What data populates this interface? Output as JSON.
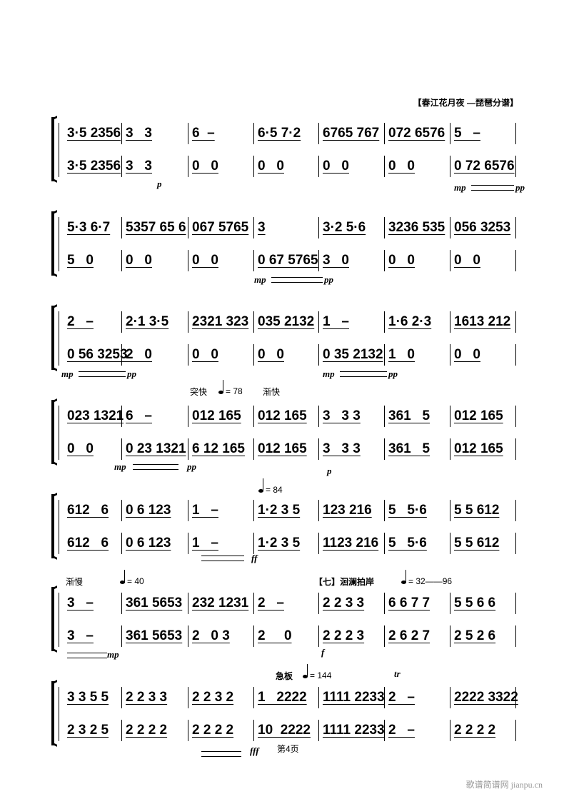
{
  "title": "【春江花月夜 —琵琶分谱】",
  "systems": [
    {
      "top": [
        "3·5 2356",
        "3   3",
        "6  –",
        "6·5 7·2",
        "6765 767",
        "072 6576",
        "5   –"
      ],
      "bottom": [
        "3·5 2356",
        "3   3",
        "0   0",
        "0   0",
        "0   0",
        "0   0",
        "0 72 6576"
      ]
    },
    {
      "top": [
        "5·3 6·7",
        "5357 65 6",
        "067 5765",
        "3",
        "3·2 5·6",
        "3236 535",
        "056 3253"
      ],
      "bottom": [
        "5   0",
        "0   0",
        "0   0",
        "0 67 5765",
        "3   0",
        "0   0",
        "0   0"
      ]
    },
    {
      "top": [
        "2   –",
        "2·1 3·5",
        "2321 323",
        "035 2132",
        "1   –",
        "1·6 2·3",
        "1613 212"
      ],
      "bottom": [
        "0 56 3253",
        "2   0",
        "0   0",
        "0   0",
        "0 35 2132",
        "1   0",
        "0   0"
      ]
    },
    {
      "top": [
        "023 1321",
        "6   –",
        "012 165",
        "012 165",
        "3   3 3",
        "361   5",
        "012 165"
      ],
      "bottom": [
        "0   0",
        "0 23 1321",
        "6 12 165",
        "012 165",
        "3   3 3",
        "361   5",
        "012 165"
      ]
    },
    {
      "top": [
        "612   6",
        "0 6 123",
        "1   –",
        "1·2 3 5",
        "123 216",
        "5   5·6",
        "5 5 612"
      ],
      "bottom": [
        "612   6",
        "0 6 123",
        "1   –",
        "1·2 3 5",
        "1123 216",
        "5   5·6",
        "5 5 612"
      ]
    },
    {
      "top": [
        "3   –",
        "361 5653",
        "232 1231",
        "2   –",
        "2 2 3 3",
        "6 6 7 7",
        "5 5 6 6"
      ],
      "bottom": [
        "3   –",
        "361 5653",
        "2   0 3",
        "2     0",
        "2 2 2 3",
        "2 6 2 7",
        "2 5 2 6"
      ]
    },
    {
      "top": [
        "3 3 5 5",
        "2 2 3 3",
        "2 2 3 2",
        "1   2222",
        "1111 2233",
        "2   –",
        "2222 3322"
      ],
      "bottom": [
        "2 3 2 5",
        "2 2 2 2",
        "2 2 2 2",
        "10  2222",
        "1111 2233",
        "2   –",
        "2 2 2 2"
      ]
    }
  ],
  "annotations": {
    "tempo_sudden": "突快",
    "tempo_78": "= 78",
    "accel": "渐快",
    "tempo_84": "= 84",
    "rit": "渐慢",
    "tempo_40": "= 40",
    "section_7": "【七】洄澜拍岸",
    "tempo_32_96": "= 32——96",
    "presto": "急板",
    "tempo_144": "= 144",
    "trill": "tr"
  },
  "dynamics": {
    "s1_p": "p",
    "s1_mp": "mp",
    "s1_pp": "pp",
    "s2_mp": "mp",
    "s2_pp": "pp",
    "s3_mp1": "mp",
    "s3_pp1": "pp",
    "s3_mp2": "mp",
    "s3_pp2": "pp",
    "s4_mp": "mp",
    "s4_pp": "pp",
    "s4_p": "p",
    "s5_fff": "ff",
    "s6_mp": "mp",
    "s6_f": "f",
    "s7_fff": "fff"
  },
  "footer": "第4页",
  "watermark": "歌谱简谱网 jianpu.cn"
}
